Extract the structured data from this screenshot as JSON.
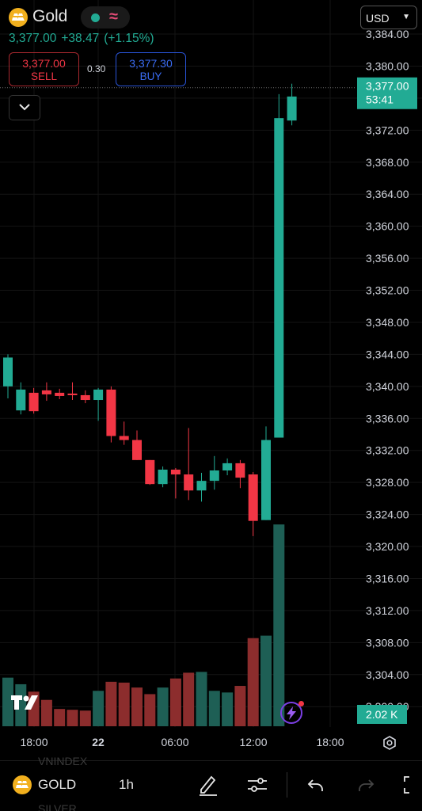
{
  "header": {
    "symbol": "Gold",
    "currency": "USD",
    "last_price": "3,377.00",
    "change": "+38.47",
    "change_pct": "(+1.15%)",
    "sell": {
      "price": "3,377.00",
      "label": "SELL"
    },
    "buy": {
      "price": "3,377.30",
      "label": "BUY"
    },
    "spread": "0.30"
  },
  "colors": {
    "up": "#22ab94",
    "down": "#f23645",
    "up_volume": "#1e5f55",
    "down_volume": "#8c2d2d",
    "background": "#000000"
  },
  "price_axis": {
    "labels": [
      "3,384.00",
      "3,380.00",
      "3,376.00",
      "3,372.00",
      "3,368.00",
      "3,364.00",
      "3,360.00",
      "3,356.00",
      "3,352.00",
      "3,348.00",
      "3,344.00",
      "3,340.00",
      "3,336.00",
      "3,332.00",
      "3,328.00",
      "3,324.00",
      "3,320.00",
      "3,316.00",
      "3,312.00",
      "3,308.00",
      "3,304.00",
      "3,300.00"
    ],
    "current_price": "3,377.00",
    "countdown": "53:41",
    "volume_label": "2.02 K"
  },
  "time_axis": {
    "labels": [
      "18:00",
      "22",
      "06:00",
      "12:00",
      "18:00"
    ]
  },
  "chart_data": {
    "type": "candlestick",
    "ylim": [
      3300,
      3384
    ],
    "candles": [
      {
        "o": 3340.0,
        "h": 3344.0,
        "l": 3338.5,
        "c": 3343.6,
        "v": 0.59
      },
      {
        "o": 3337.0,
        "h": 3340.5,
        "l": 3336.5,
        "c": 3339.6,
        "v": 0.51
      },
      {
        "o": 3339.2,
        "h": 3339.8,
        "l": 3336.6,
        "c": 3336.9,
        "v": 0.42
      },
      {
        "o": 3339.5,
        "h": 3340.5,
        "l": 3338.2,
        "c": 3339.0,
        "v": 0.32
      },
      {
        "o": 3339.2,
        "h": 3339.7,
        "l": 3338.4,
        "c": 3338.8,
        "v": 0.21
      },
      {
        "o": 3339.1,
        "h": 3340.5,
        "l": 3338.3,
        "c": 3338.9,
        "v": 0.2
      },
      {
        "o": 3338.9,
        "h": 3339.5,
        "l": 3337.9,
        "c": 3338.3,
        "v": 0.19
      },
      {
        "o": 3338.3,
        "h": 3339.8,
        "l": 3335.7,
        "c": 3339.6,
        "v": 0.43
      },
      {
        "o": 3339.6,
        "h": 3340.0,
        "l": 3333.0,
        "c": 3333.8,
        "v": 0.54
      },
      {
        "o": 3333.8,
        "h": 3335.6,
        "l": 3332.7,
        "c": 3333.3,
        "v": 0.53
      },
      {
        "o": 3333.3,
        "h": 3334.5,
        "l": 3330.8,
        "c": 3330.8,
        "v": 0.47
      },
      {
        "o": 3330.8,
        "h": 3330.8,
        "l": 3327.7,
        "c": 3327.8,
        "v": 0.39
      },
      {
        "o": 3327.8,
        "h": 3330.0,
        "l": 3327.4,
        "c": 3329.6,
        "v": 0.47
      },
      {
        "o": 3329.6,
        "h": 3329.8,
        "l": 3326.0,
        "c": 3329.0,
        "v": 0.58
      },
      {
        "o": 3329.0,
        "h": 3334.8,
        "l": 3325.8,
        "c": 3327.0,
        "v": 0.65
      },
      {
        "o": 3327.0,
        "h": 3329.2,
        "l": 3325.6,
        "c": 3328.2,
        "v": 0.66
      },
      {
        "o": 3328.2,
        "h": 3331.3,
        "l": 3327.1,
        "c": 3329.5,
        "v": 0.43
      },
      {
        "o": 3329.5,
        "h": 3331.0,
        "l": 3328.9,
        "c": 3330.4,
        "v": 0.41
      },
      {
        "o": 3330.4,
        "h": 3330.8,
        "l": 3327.3,
        "c": 3328.6,
        "v": 0.49
      },
      {
        "o": 3329.0,
        "h": 3329.3,
        "l": 3321.3,
        "c": 3323.2,
        "v": 1.07
      },
      {
        "o": 3323.3,
        "h": 3335.0,
        "l": 3323.3,
        "c": 3333.3,
        "v": 1.1
      },
      {
        "o": 3333.6,
        "h": 3376.5,
        "l": 3333.6,
        "c": 3373.5,
        "v": 2.45
      },
      {
        "o": 3373.2,
        "h": 3377.8,
        "l": 3372.6,
        "c": 3376.2,
        "v": 0
      }
    ]
  },
  "bottom_bar": {
    "symbol": "GOLD",
    "interval": "1h",
    "ghost_above": "VNINDEX",
    "ghost_below": "SILVER"
  }
}
